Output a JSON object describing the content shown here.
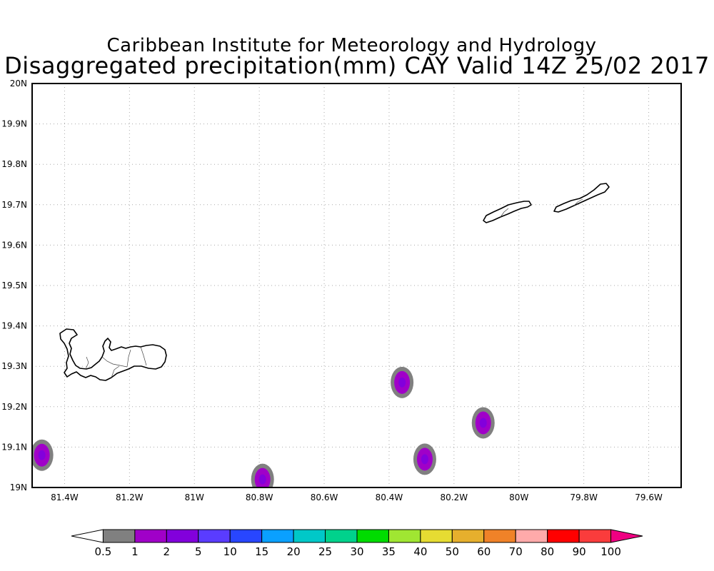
{
  "title": {
    "line1": "Caribbean Institute for Meteorology and Hydrology",
    "line2": "Disaggregated precipitation(mm) CAY Valid 14Z 25/02 2017"
  },
  "map": {
    "lon_range": [
      -81.5,
      -79.5
    ],
    "lat_range": [
      19.0,
      20.0
    ],
    "grid": true,
    "lon_ticks": [
      {
        "value": -81.4,
        "label": "81.4W"
      },
      {
        "value": -81.2,
        "label": "81.2W"
      },
      {
        "value": -81.0,
        "label": "81W"
      },
      {
        "value": -80.8,
        "label": "80.8W"
      },
      {
        "value": -80.6,
        "label": "80.6W"
      },
      {
        "value": -80.4,
        "label": "80.4W"
      },
      {
        "value": -80.2,
        "label": "80.2W"
      },
      {
        "value": -80.0,
        "label": "80W"
      },
      {
        "value": -79.8,
        "label": "79.8W"
      },
      {
        "value": -79.6,
        "label": "79.6W"
      }
    ],
    "lat_ticks": [
      {
        "value": 19.0,
        "label": "19N"
      },
      {
        "value": 19.1,
        "label": "19.1N"
      },
      {
        "value": 19.2,
        "label": "19.2N"
      },
      {
        "value": 19.3,
        "label": "19.3N"
      },
      {
        "value": 19.4,
        "label": "19.4N"
      },
      {
        "value": 19.5,
        "label": "19.5N"
      },
      {
        "value": 19.6,
        "label": "19.6N"
      },
      {
        "value": 19.7,
        "label": "19.7N"
      },
      {
        "value": 19.8,
        "label": "19.8N"
      },
      {
        "value": 19.9,
        "label": "19.9N"
      },
      {
        "value": 20.0,
        "label": "20N"
      }
    ],
    "precip_cells": [
      {
        "lon": -81.47,
        "lat": 19.08,
        "outer_color": "#808080",
        "inner_color": "#a000c8",
        "core_color": "#8200dc"
      },
      {
        "lon": -80.79,
        "lat": 19.02,
        "outer_color": "#808080",
        "inner_color": "#a000c8",
        "core_color": "#8200dc"
      },
      {
        "lon": -80.36,
        "lat": 19.26,
        "outer_color": "#808080",
        "inner_color": "#a000c8",
        "core_color": "#8200dc"
      },
      {
        "lon": -80.29,
        "lat": 19.07,
        "outer_color": "#808080",
        "inner_color": "#a000c8",
        "core_color": "#8200dc"
      },
      {
        "lon": -80.11,
        "lat": 19.16,
        "outer_color": "#808080",
        "inner_color": "#a000c8",
        "core_color": "#8200dc"
      }
    ]
  },
  "colorbar": {
    "colors": [
      "#ffffff",
      "#808080",
      "#a000c8",
      "#8200dc",
      "#5a3cff",
      "#2846ff",
      "#0aa0ff",
      "#00c8c8",
      "#00d28c",
      "#00dc00",
      "#a0e632",
      "#e6dc32",
      "#e6af2d",
      "#f08228",
      "#ffaaaa",
      "#ff0000",
      "#fa3c3c",
      "#f00082"
    ],
    "labels": [
      "0.5",
      "1",
      "2",
      "5",
      "10",
      "15",
      "20",
      "25",
      "30",
      "35",
      "40",
      "50",
      "60",
      "70",
      "80",
      "90",
      "100"
    ]
  }
}
